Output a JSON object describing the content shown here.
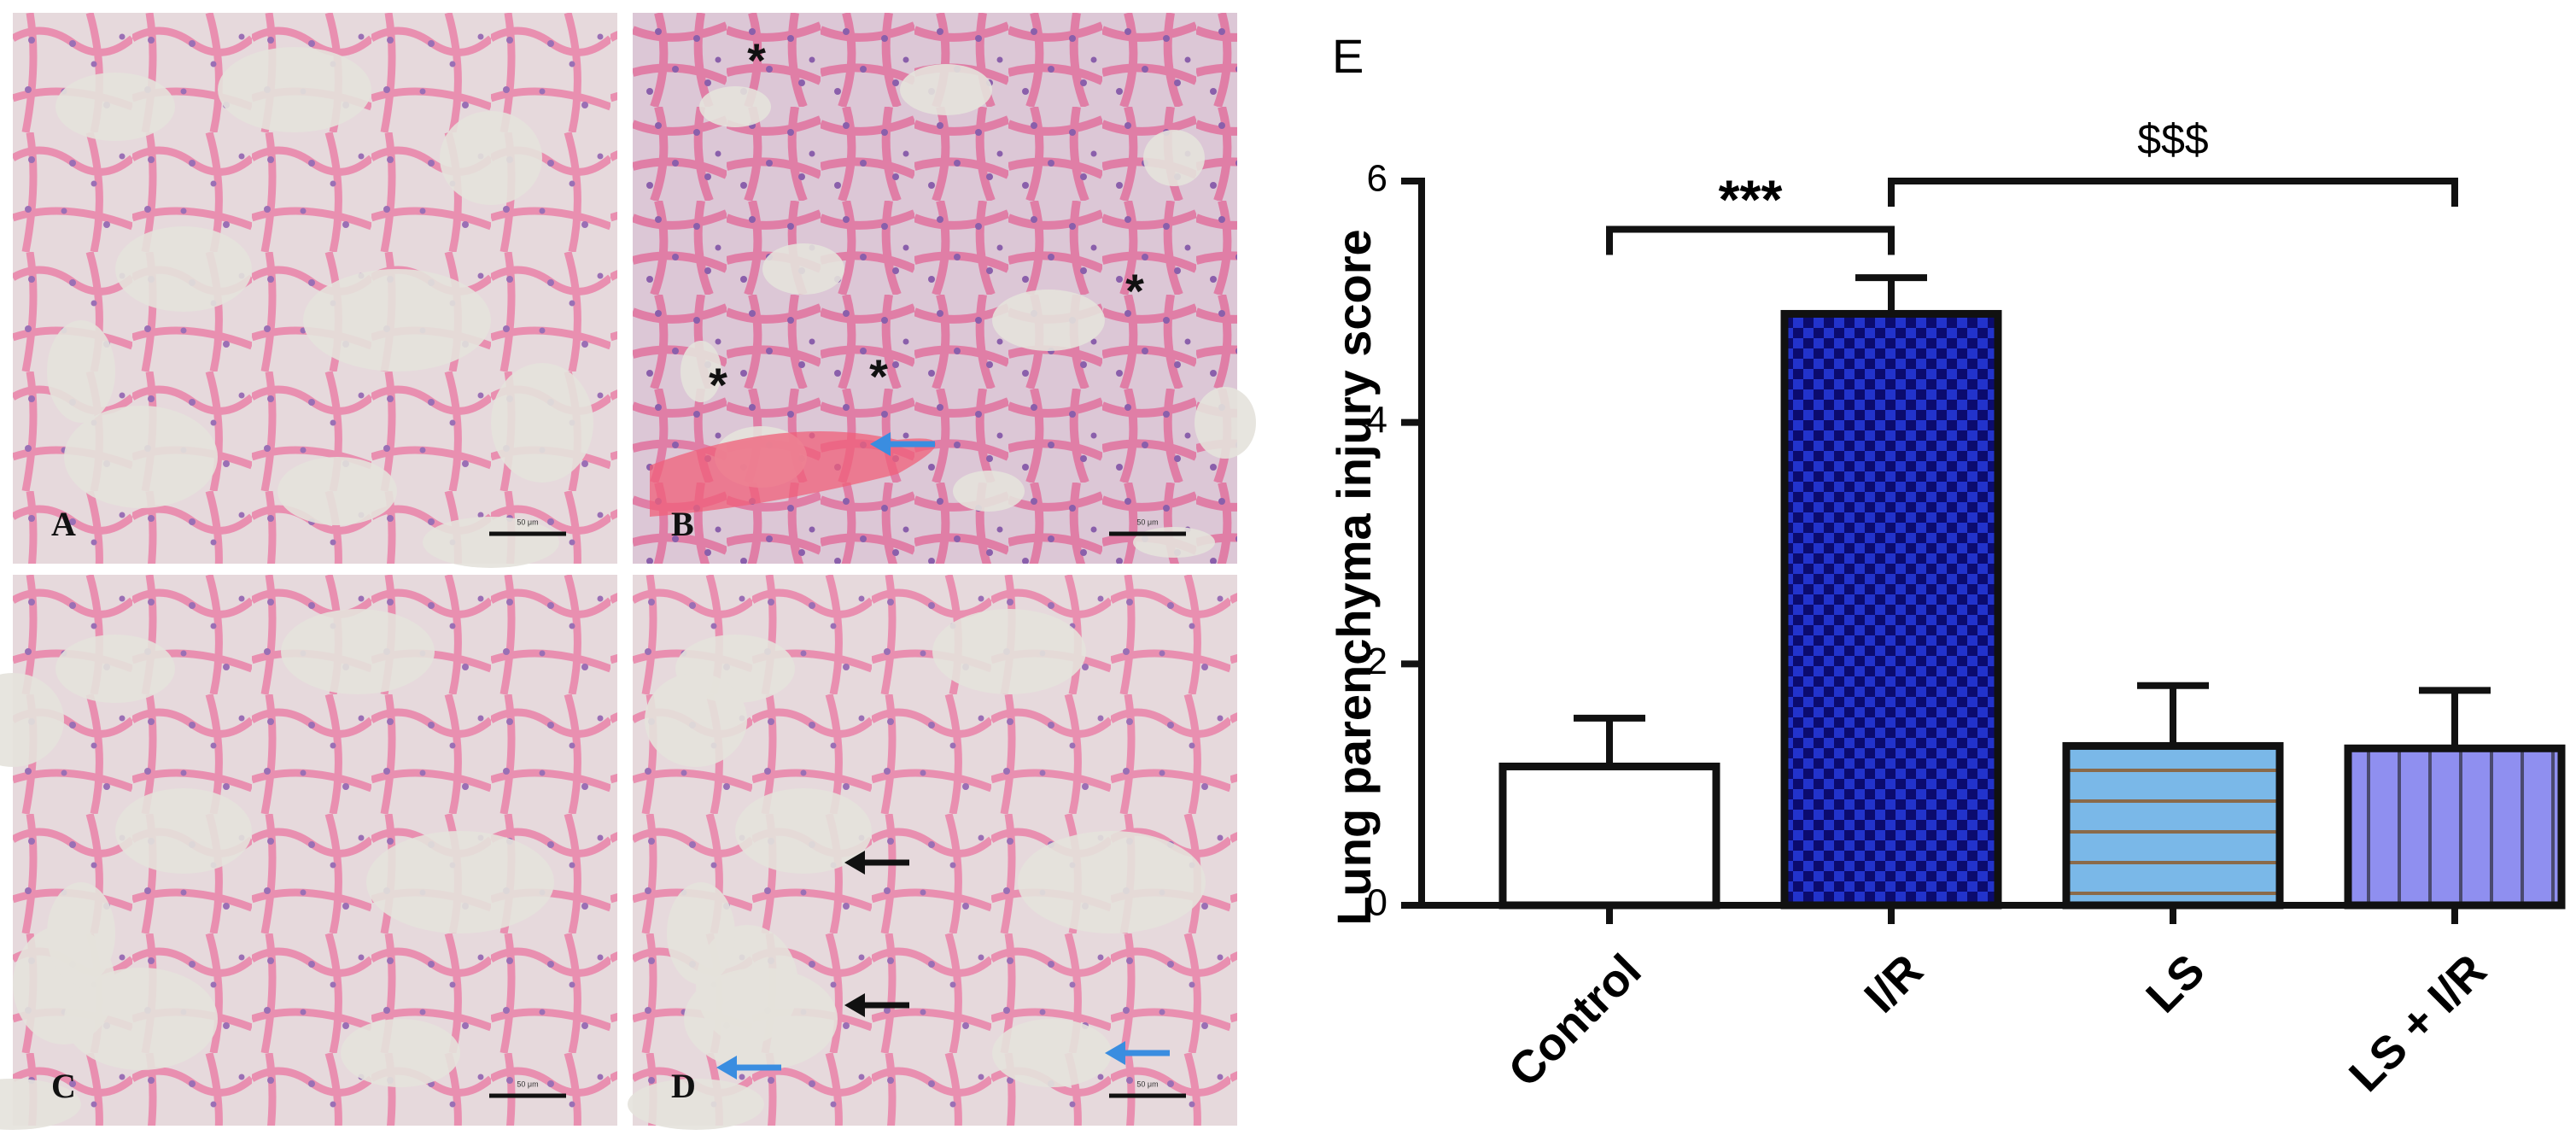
{
  "figure": {
    "panels": [
      {
        "label": "A"
      },
      {
        "label": "B",
        "annotations": [
          "*",
          "*",
          "*",
          "*"
        ]
      },
      {
        "label": "C"
      },
      {
        "label": "D"
      }
    ],
    "scale_bar": "50 μm"
  },
  "chart_data": {
    "type": "bar",
    "panel_label": "E",
    "y_label": "Lung parenchyma injury score",
    "categories": [
      "Control",
      "I/R",
      "LS",
      "LS + I/R"
    ],
    "values": [
      1.15,
      4.9,
      1.32,
      1.3
    ],
    "errors": [
      0.4,
      0.3,
      0.5,
      0.48
    ],
    "colors": [
      "#ffffff",
      "#0b0b6e",
      "#7ab8e8",
      "#8f8ff0"
    ],
    "patterns": [
      "none",
      "checker",
      "hlines",
      "vlines"
    ],
    "ylim": [
      0,
      6
    ],
    "yticks": [
      0,
      2,
      4,
      6
    ],
    "significance": [
      "***",
      "$$$"
    ]
  }
}
